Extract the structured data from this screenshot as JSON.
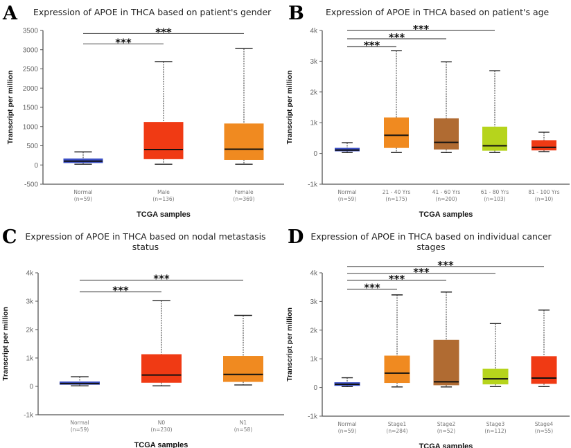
{
  "colors": {
    "normal": "#3b4fc4",
    "red": "#f03a14",
    "orange": "#f08a20",
    "brown": "#b06b32",
    "lime": "#b6d41c"
  },
  "chart_data": [
    {
      "type": "box",
      "panel_label": "A",
      "title": [
        "Expression of APOE in THCA based on patient's gender"
      ],
      "xlabel": "TCGA samples",
      "ylabel": "Transcript per million",
      "ylim": [
        -500,
        3500
      ],
      "yticks": [
        -500,
        0,
        500,
        1000,
        1500,
        2000,
        2500,
        3000,
        3500
      ],
      "ytick_labels": [
        "-500",
        "0",
        "500",
        "1000",
        "1500",
        "2000",
        "2500",
        "3000",
        "3500"
      ],
      "categories": [
        {
          "name": "Normal",
          "n": "(n=59)",
          "color": "normal",
          "min": 20,
          "q1": 60,
          "median": 100,
          "q3": 160,
          "max": 340
        },
        {
          "name": "Male",
          "n": "(n=136)",
          "color": "red",
          "min": 20,
          "q1": 160,
          "median": 400,
          "q3": 1110,
          "max": 2690
        },
        {
          "name": "Female",
          "n": "(n=369)",
          "color": "orange",
          "min": 20,
          "q1": 140,
          "median": 410,
          "q3": 1070,
          "max": 3030
        }
      ],
      "significance": [
        {
          "from": 0,
          "to": 1,
          "y": 3150,
          "label": "***"
        },
        {
          "from": 0,
          "to": 2,
          "y": 3420,
          "label": "***"
        }
      ]
    },
    {
      "type": "box",
      "panel_label": "B",
      "title": [
        "Expression of APOE in THCA based on patient's age"
      ],
      "xlabel": "TCGA samples",
      "ylabel": "Transcript per million",
      "ylim": [
        -1000,
        4000
      ],
      "yticks": [
        -1000,
        0,
        1000,
        2000,
        3000,
        4000
      ],
      "ytick_labels": [
        "-1k",
        "0",
        "1k",
        "2k",
        "3k",
        "4k"
      ],
      "categories": [
        {
          "name": "Normal",
          "n": "(n=59)",
          "color": "normal",
          "min": 30,
          "q1": 80,
          "median": 110,
          "q3": 170,
          "max": 350
        },
        {
          "name": "21 - 40 Yrs",
          "n": "(n=175)",
          "color": "orange",
          "min": 30,
          "q1": 190,
          "median": 590,
          "q3": 1160,
          "max": 3340
        },
        {
          "name": "41 - 60 Yrs",
          "n": "(n=200)",
          "color": "brown",
          "min": 30,
          "q1": 140,
          "median": 360,
          "q3": 1130,
          "max": 2980
        },
        {
          "name": "61 - 80 Yrs",
          "n": "(n=103)",
          "color": "lime",
          "min": 30,
          "q1": 100,
          "median": 250,
          "q3": 860,
          "max": 2690
        },
        {
          "name": "81 - 100 Yrs",
          "n": "(n=10)",
          "color": "red",
          "min": 60,
          "q1": 110,
          "median": 200,
          "q3": 420,
          "max": 690
        }
      ],
      "significance": [
        {
          "from": 0,
          "to": 1,
          "y": 3470,
          "label": "***"
        },
        {
          "from": 0,
          "to": 2,
          "y": 3730,
          "label": "***"
        },
        {
          "from": 0,
          "to": 3,
          "y": 4000,
          "label": "***"
        }
      ]
    },
    {
      "type": "box",
      "panel_label": "C",
      "title": [
        "Expression of APOE in THCA based on nodal metastasis",
        "status"
      ],
      "xlabel": "TCGA samples",
      "ylabel": "Transcript per million",
      "ylim": [
        -1000,
        4000
      ],
      "yticks": [
        -1000,
        0,
        1000,
        2000,
        3000,
        4000
      ],
      "ytick_labels": [
        "-1k",
        "0",
        "1k",
        "2k",
        "3k",
        "4k"
      ],
      "categories": [
        {
          "name": "Normal",
          "n": "(n=59)",
          "color": "normal",
          "min": 20,
          "q1": 70,
          "median": 100,
          "q3": 160,
          "max": 340
        },
        {
          "name": "N0",
          "n": "(n=230)",
          "color": "red",
          "min": 20,
          "q1": 140,
          "median": 400,
          "q3": 1120,
          "max": 3020
        },
        {
          "name": "N1",
          "n": "(n=58)",
          "color": "orange",
          "min": 50,
          "q1": 170,
          "median": 420,
          "q3": 1060,
          "max": 2500
        }
      ],
      "significance": [
        {
          "from": 0,
          "to": 1,
          "y": 3330,
          "label": "***"
        },
        {
          "from": 0,
          "to": 2,
          "y": 3740,
          "label": "***"
        }
      ]
    },
    {
      "type": "box",
      "panel_label": "D",
      "title": [
        "Expression of APOE in THCA based on individual cancer",
        "stages"
      ],
      "xlabel": "TCGA samples",
      "ylabel": "Transcript per million",
      "ylim": [
        -1000,
        4000
      ],
      "yticks": [
        -1000,
        0,
        1000,
        2000,
        3000,
        4000
      ],
      "ytick_labels": [
        "-1k",
        "0",
        "1k",
        "2k",
        "3k",
        "4k"
      ],
      "categories": [
        {
          "name": "Normal",
          "n": "(n=59)",
          "color": "normal",
          "min": 30,
          "q1": 70,
          "median": 110,
          "q3": 170,
          "max": 340
        },
        {
          "name": "Stage1",
          "n": "(n=284)",
          "color": "orange",
          "min": 20,
          "q1": 170,
          "median": 500,
          "q3": 1100,
          "max": 3230
        },
        {
          "name": "Stage2",
          "n": "(n=52)",
          "color": "brown",
          "min": 20,
          "q1": 90,
          "median": 200,
          "q3": 1650,
          "max": 3330
        },
        {
          "name": "Stage3",
          "n": "(n=112)",
          "color": "lime",
          "min": 30,
          "q1": 120,
          "median": 300,
          "q3": 640,
          "max": 2230
        },
        {
          "name": "Stage4",
          "n": "(n=55)",
          "color": "red",
          "min": 30,
          "q1": 140,
          "median": 330,
          "q3": 1080,
          "max": 2700
        }
      ],
      "significance": [
        {
          "from": 0,
          "to": 1,
          "y": 3430,
          "label": "***"
        },
        {
          "from": 0,
          "to": 2,
          "y": 3740,
          "label": "***"
        },
        {
          "from": 0,
          "to": 3,
          "y": 3980,
          "label": "***"
        },
        {
          "from": 0,
          "to": 4,
          "y": 4220,
          "label": "***"
        }
      ]
    }
  ]
}
